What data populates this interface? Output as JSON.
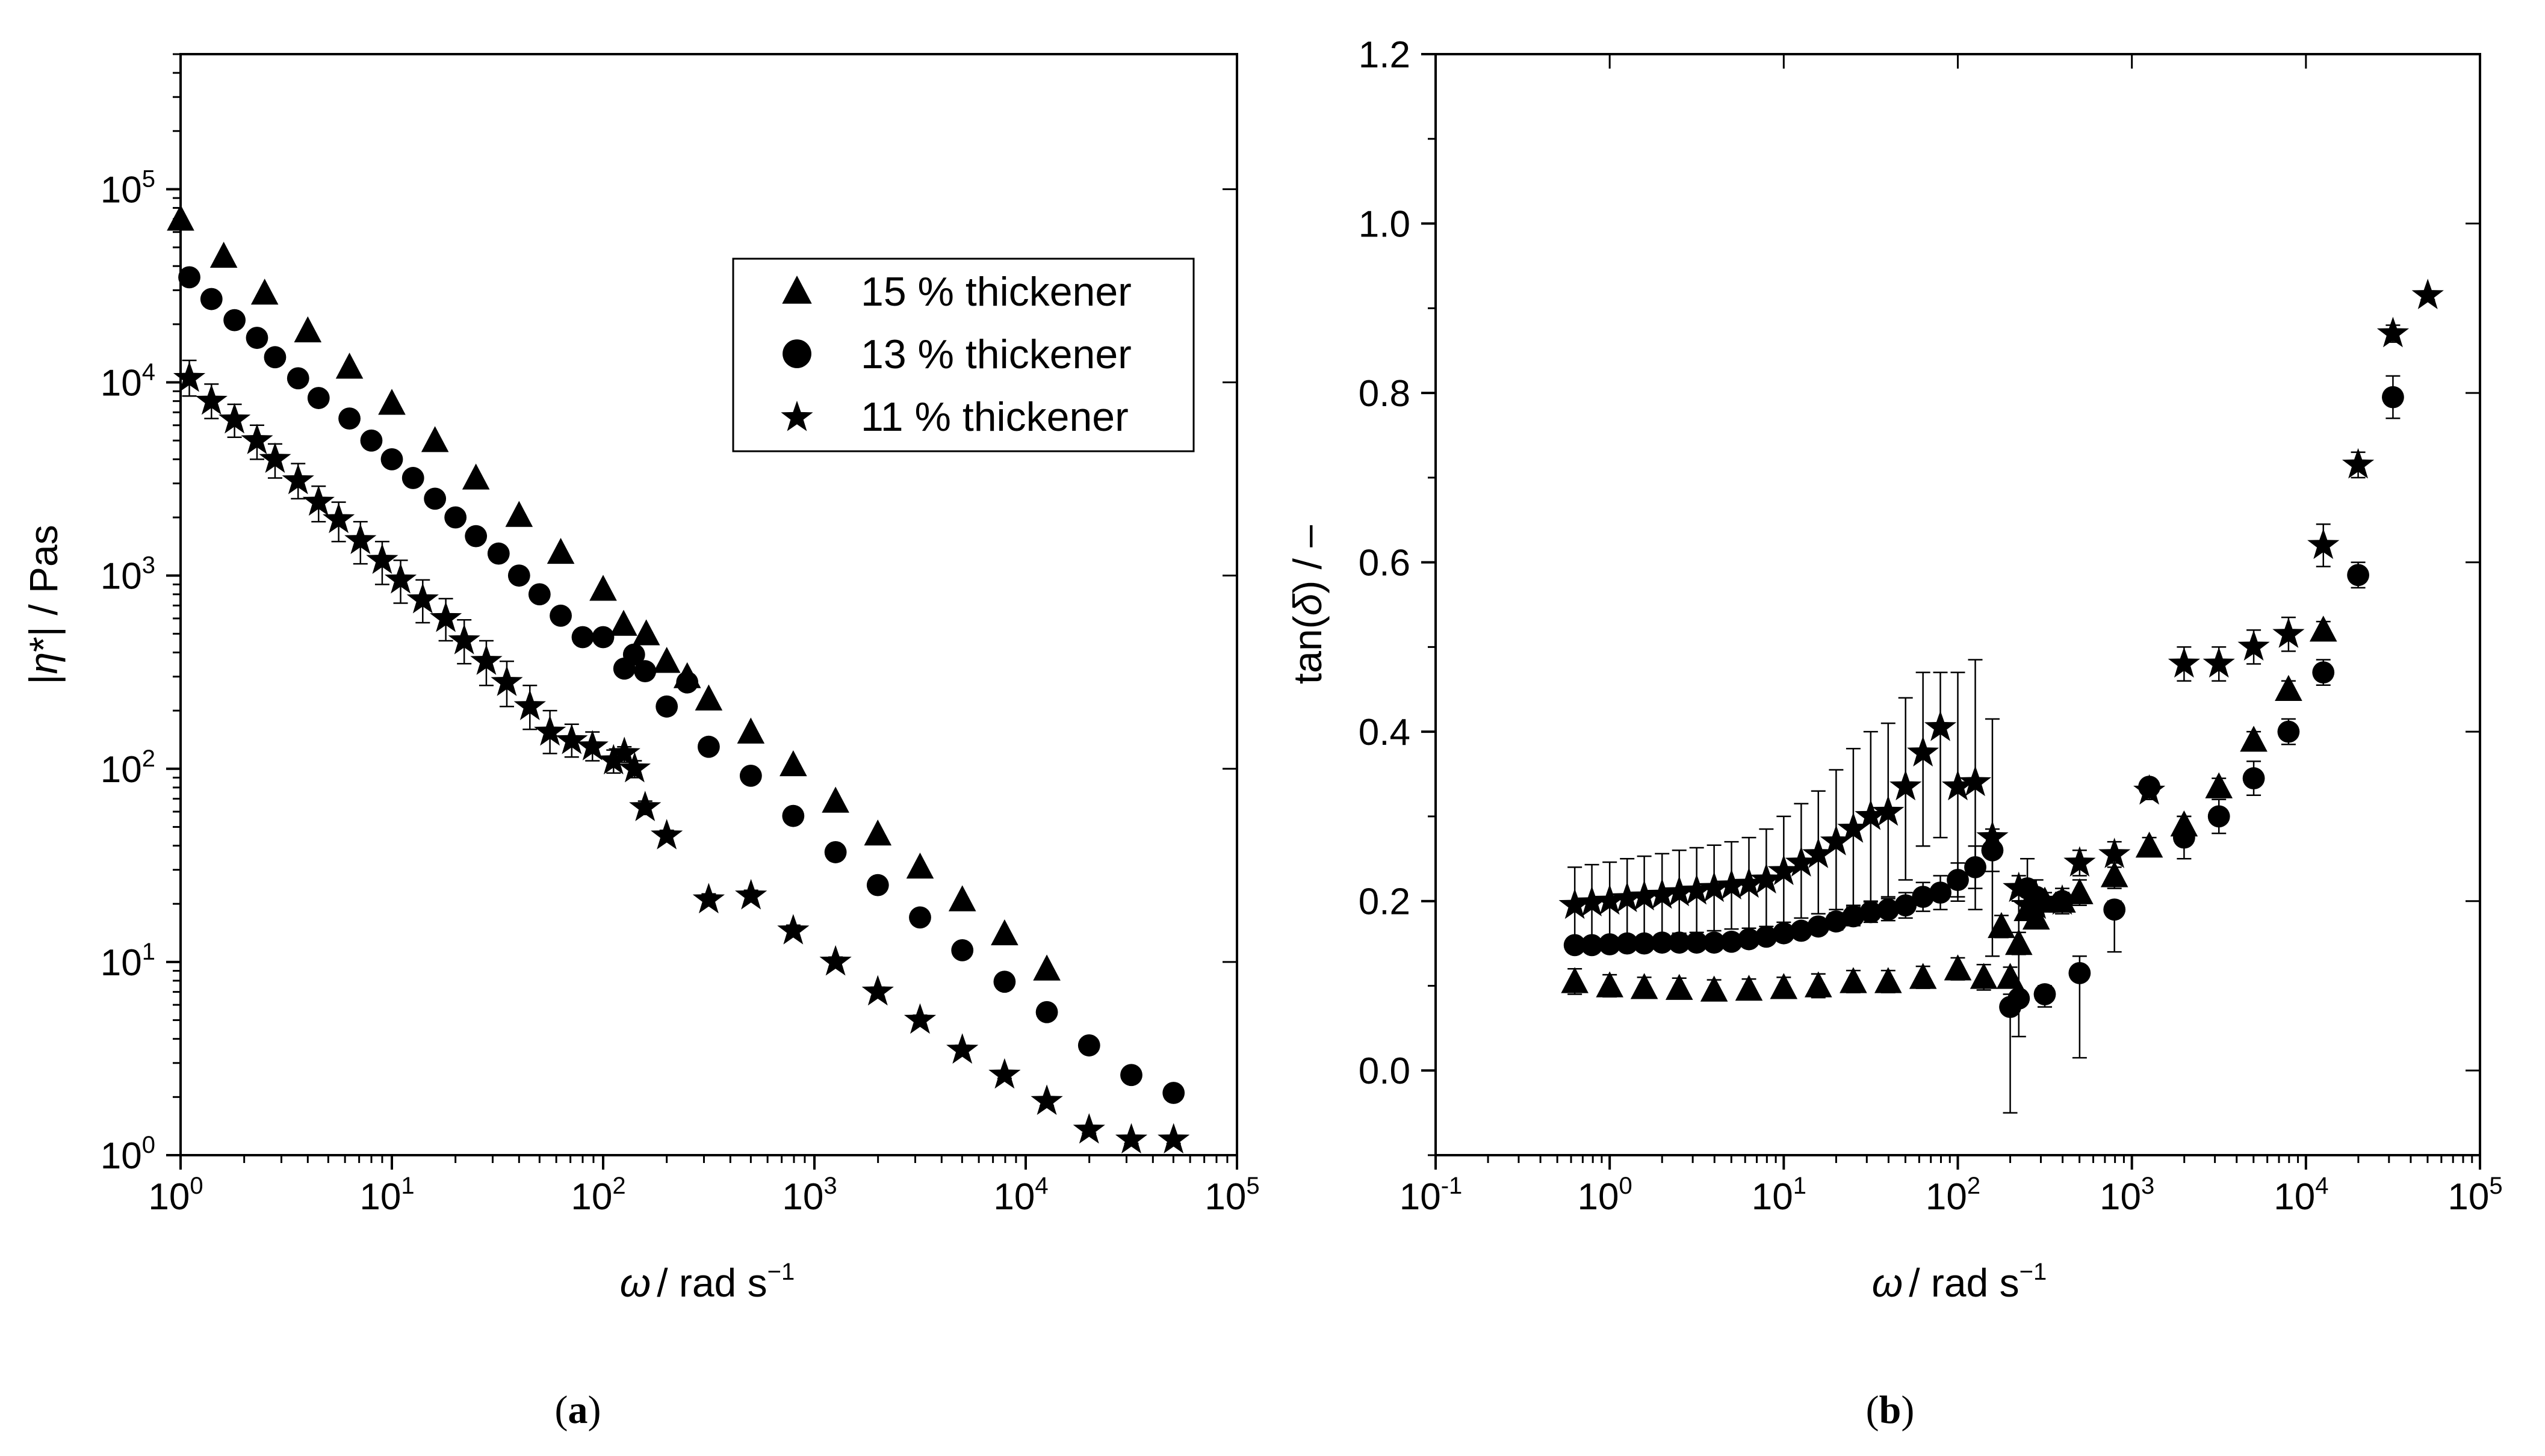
{
  "chart_data": [
    {
      "id": "a",
      "type": "scatter",
      "panel_label": {
        "open": "(",
        "letter": "a",
        "close": ")"
      },
      "xscale": "log",
      "yscale": "log",
      "xlim": [
        1,
        100000
      ],
      "ylim": [
        1,
        500000
      ],
      "xlabel": {
        "symbol": "ω",
        "text": "/ rad s",
        "sup": "−1"
      },
      "ylabel": {
        "pre": "|",
        "symbol": "η",
        "post": "*| / Pas"
      },
      "xticks": [
        {
          "base": "10",
          "exp": "0",
          "v": 1
        },
        {
          "base": "10",
          "exp": "1",
          "v": 10
        },
        {
          "base": "10",
          "exp": "2",
          "v": 100
        },
        {
          "base": "10",
          "exp": "3",
          "v": 1000
        },
        {
          "base": "10",
          "exp": "4",
          "v": 10000
        },
        {
          "base": "10",
          "exp": "5",
          "v": 100000
        }
      ],
      "yticks": [
        {
          "base": "10",
          "exp": "0",
          "v": 1
        },
        {
          "base": "10",
          "exp": "1",
          "v": 10
        },
        {
          "base": "10",
          "exp": "2",
          "v": 100
        },
        {
          "base": "10",
          "exp": "3",
          "v": 1000
        },
        {
          "base": "10",
          "exp": "4",
          "v": 10000
        },
        {
          "base": "10",
          "exp": "5",
          "v": 100000
        }
      ],
      "legend": {
        "position": "upper-right",
        "entries": [
          "15 % thickener",
          "13 % thickener",
          "11 % thickener"
        ]
      },
      "series": [
        {
          "name": "15 % thickener",
          "marker": "triangle",
          "x": [
            1,
            1.6,
            2.5,
            4,
            6.3,
            10,
            16,
            25,
            40,
            63,
            100,
            125,
            160,
            200,
            250,
            316,
            500,
            794,
            1259,
            1995,
            3162,
            5012,
            7943,
            12589
          ],
          "y": [
            70000,
            45000,
            29000,
            18500,
            12000,
            7800,
            5000,
            3200,
            2050,
            1320,
            850,
            560,
            500,
            360,
            300,
            230,
            155,
            105,
            68,
            46,
            31,
            21,
            14,
            9.2
          ]
        },
        {
          "name": "13 % thickener",
          "marker": "circle",
          "x": [
            1.1,
            1.4,
            1.8,
            2.3,
            2.8,
            3.6,
            4.5,
            6.3,
            8,
            10,
            12.6,
            16,
            20,
            25,
            32,
            40,
            50,
            63,
            80,
            100,
            126,
            140,
            158,
            200,
            250,
            316,
            500,
            794,
            1259,
            1995,
            3162,
            5012,
            7943,
            12589,
            19953,
            31623,
            50119
          ],
          "y": [
            35000,
            27000,
            21000,
            17000,
            13500,
            10500,
            8300,
            6500,
            5000,
            4000,
            3200,
            2500,
            2000,
            1600,
            1300,
            1000,
            800,
            620,
            480,
            480,
            330,
            390,
            320,
            210,
            280,
            130,
            92,
            57,
            37,
            25,
            17,
            11.5,
            7.9,
            5.5,
            3.7,
            2.6,
            2.1
          ]
        },
        {
          "name": "11 % thickener",
          "marker": "star",
          "x": [
            1.1,
            1.4,
            1.8,
            2.3,
            2.8,
            3.6,
            4.5,
            5.6,
            7.1,
            9,
            11,
            14,
            18,
            22,
            28,
            35,
            45,
            56,
            71,
            89,
            112,
            126,
            141,
            158,
            200,
            316,
            501,
            794,
            1259,
            1995,
            3162,
            5012,
            7943,
            12589,
            19953,
            31623,
            50119
          ],
          "y": [
            10500,
            8000,
            6400,
            5000,
            4000,
            3100,
            2400,
            1950,
            1520,
            1200,
            950,
            750,
            600,
            460,
            360,
            280,
            210,
            155,
            140,
            130,
            110,
            120,
            100,
            63,
            45,
            21,
            22,
            14.5,
            10,
            7,
            5,
            3.5,
            2.6,
            1.9,
            1.35,
            1.2,
            1.2
          ],
          "err_upper": [
            13000,
            9800,
            7700,
            6000,
            4800,
            3800,
            2900,
            2400,
            1900,
            1500,
            1200,
            950,
            760,
            590,
            460,
            360,
            270,
            200,
            170,
            155,
            125,
            130,
            110,
            68,
            48,
            22.5,
            23.5,
            15.5,
            10.6,
            7.4,
            5.3,
            3.7,
            2.7,
            2,
            1.4,
            1.25,
            1.25
          ],
          "err_lower": [
            8500,
            6500,
            5200,
            4000,
            3200,
            2500,
            1900,
            1500,
            1150,
            900,
            720,
            570,
            460,
            350,
            270,
            210,
            160,
            120,
            115,
            110,
            95,
            108,
            90,
            58,
            42,
            19.5,
            20.5,
            13.5,
            9.4,
            6.6,
            4.7,
            3.3,
            2.5,
            1.8,
            1.3,
            1.15,
            1.15
          ]
        }
      ]
    },
    {
      "id": "b",
      "type": "scatter",
      "panel_label": {
        "open": "(",
        "letter": "b",
        "close": ")"
      },
      "xscale": "log",
      "yscale": "linear",
      "xlim": [
        0.1,
        100000
      ],
      "ylim": [
        -0.1,
        1.2
      ],
      "xlabel": {
        "symbol": "ω",
        "text": "/ rad s",
        "sup": "−1"
      },
      "ylabel": {
        "pre": "tan(",
        "symbol": "δ",
        "post": ") / –"
      },
      "xticks": [
        {
          "base": "10",
          "exp": "-1",
          "v": 0.1
        },
        {
          "base": "10",
          "exp": "0",
          "v": 1
        },
        {
          "base": "10",
          "exp": "1",
          "v": 10
        },
        {
          "base": "10",
          "exp": "2",
          "v": 100
        },
        {
          "base": "10",
          "exp": "3",
          "v": 1000
        },
        {
          "base": "10",
          "exp": "4",
          "v": 10000
        },
        {
          "base": "10",
          "exp": "5",
          "v": 100000
        }
      ],
      "yticks": [
        "0.0",
        "0.2",
        "0.4",
        "0.6",
        "0.8",
        "1.0",
        "1.2"
      ],
      "yminor": [
        -0.1,
        0.1,
        0.3,
        0.5,
        0.7,
        0.9,
        1.1
      ],
      "series": [
        {
          "name": "15 % thickener",
          "marker": "triangle",
          "x": [
            0.63,
            1,
            1.58,
            2.51,
            3.98,
            6.31,
            10,
            15.8,
            25.1,
            39.8,
            63.1,
            100,
            141,
            178,
            200,
            224,
            251,
            282,
            316,
            398,
            501,
            794,
            1259,
            1995,
            3162,
            5012,
            7943,
            12589
          ],
          "y": [
            0.105,
            0.1,
            0.098,
            0.097,
            0.095,
            0.096,
            0.098,
            0.1,
            0.105,
            0.105,
            0.11,
            0.12,
            0.11,
            0.17,
            0.11,
            0.15,
            0.19,
            0.18,
            0.2,
            0.2,
            0.21,
            0.23,
            0.265,
            0.29,
            0.335,
            0.39,
            0.45,
            0.52
          ],
          "err_upper": [
            0.12,
            0.113,
            0.11,
            0.109,
            0.107,
            0.108,
            0.11,
            0.114,
            0.118,
            0.118,
            0.123,
            0.133,
            0.125,
            0.183,
            0.122,
            0.163,
            0.2,
            0.19,
            0.21,
            0.21,
            0.225,
            0.245,
            0.275,
            0.3,
            0.345,
            0.4,
            0.46,
            0.53
          ],
          "err_lower": [
            0.09,
            0.087,
            0.086,
            0.085,
            0.083,
            0.084,
            0.086,
            0.086,
            0.092,
            0.092,
            0.097,
            0.107,
            0.095,
            0.157,
            0.098,
            0.137,
            0.18,
            0.17,
            0.19,
            0.19,
            0.195,
            0.215,
            0.255,
            0.28,
            0.325,
            0.38,
            0.44,
            0.51
          ]
        },
        {
          "name": "13 % thickener",
          "marker": "circle",
          "x": [
            0.63,
            0.79,
            1,
            1.26,
            1.58,
            2,
            2.51,
            3.16,
            3.98,
            5.01,
            6.31,
            7.94,
            10,
            12.6,
            15.8,
            20,
            25.1,
            31.6,
            39.8,
            50.1,
            63.1,
            79.4,
            100,
            126,
            158,
            200,
            224,
            251,
            282,
            316,
            398,
            501,
            794,
            1259,
            1995,
            3162,
            5012,
            7943,
            12589,
            19953,
            31623
          ],
          "y": [
            0.148,
            0.148,
            0.149,
            0.15,
            0.15,
            0.151,
            0.151,
            0.151,
            0.151,
            0.152,
            0.155,
            0.158,
            0.162,
            0.165,
            0.17,
            0.176,
            0.182,
            0.187,
            0.19,
            0.195,
            0.205,
            0.21,
            0.225,
            0.24,
            0.26,
            0.075,
            0.085,
            0.215,
            0.205,
            0.09,
            0.2,
            0.115,
            0.19,
            0.335,
            0.275,
            0.3,
            0.345,
            0.4,
            0.47,
            0.585,
            0.795
          ],
          "err_upper": [
            0.155,
            0.155,
            0.156,
            0.157,
            0.157,
            0.158,
            0.158,
            0.158,
            0.158,
            0.16,
            0.163,
            0.166,
            0.17,
            0.174,
            0.179,
            0.186,
            0.193,
            0.199,
            0.203,
            0.21,
            0.222,
            0.23,
            0.245,
            0.265,
            0.285,
            0.09,
            0.21,
            0.25,
            0.225,
            0.1,
            0.21,
            0.135,
            0.2,
            0.34,
            0.3,
            0.32,
            0.365,
            0.415,
            0.485,
            0.6,
            0.82
          ],
          "err_lower": [
            0.141,
            0.141,
            0.142,
            0.143,
            0.143,
            0.144,
            0.144,
            0.144,
            0.144,
            0.144,
            0.147,
            0.15,
            0.154,
            0.156,
            0.161,
            0.166,
            0.171,
            0.175,
            0.177,
            0.18,
            0.188,
            0.19,
            0.205,
            0.215,
            0.235,
            -0.05,
            0.04,
            0.18,
            0.185,
            0.075,
            0.19,
            0.015,
            0.14,
            0.325,
            0.25,
            0.28,
            0.325,
            0.385,
            0.455,
            0.57,
            0.77
          ]
        },
        {
          "name": "11 % thickener",
          "marker": "star",
          "x": [
            0.63,
            0.79,
            1,
            1.26,
            1.58,
            2,
            2.51,
            3.16,
            3.98,
            5.01,
            6.31,
            7.94,
            10,
            12.6,
            15.8,
            20,
            25.1,
            31.6,
            39.8,
            50.1,
            63.1,
            79.4,
            100,
            126,
            158,
            224,
            251,
            282,
            398,
            501,
            794,
            1259,
            1995,
            3162,
            5012,
            7943,
            12589,
            19953,
            31623,
            50119
          ],
          "y": [
            0.195,
            0.198,
            0.2,
            0.203,
            0.205,
            0.207,
            0.21,
            0.212,
            0.215,
            0.218,
            0.22,
            0.225,
            0.235,
            0.245,
            0.255,
            0.27,
            0.285,
            0.3,
            0.305,
            0.335,
            0.375,
            0.405,
            0.335,
            0.34,
            0.275,
            0.215,
            0.195,
            0.195,
            0.2,
            0.245,
            0.255,
            0.33,
            0.48,
            0.48,
            0.5,
            0.515,
            0.62,
            0.715,
            0.87,
            0.915
          ],
          "err_upper": [
            0.24,
            0.243,
            0.246,
            0.25,
            0.253,
            0.256,
            0.26,
            0.263,
            0.266,
            0.27,
            0.275,
            0.285,
            0.3,
            0.315,
            0.33,
            0.355,
            0.38,
            0.4,
            0.41,
            0.44,
            0.47,
            0.47,
            0.47,
            0.485,
            0.415,
            0.23,
            0.21,
            0.205,
            0.215,
            0.26,
            0.27,
            0.34,
            0.5,
            0.5,
            0.52,
            0.535,
            0.645,
            0.73,
            0.88,
            0.92
          ],
          "err_lower": [
            0.15,
            0.153,
            0.155,
            0.157,
            0.158,
            0.16,
            0.162,
            0.163,
            0.165,
            0.167,
            0.168,
            0.17,
            0.175,
            0.18,
            0.185,
            0.19,
            0.195,
            0.2,
            0.205,
            0.225,
            0.265,
            0.275,
            0.2,
            0.19,
            0.135,
            0.2,
            0.18,
            0.185,
            0.185,
            0.23,
            0.24,
            0.32,
            0.46,
            0.46,
            0.48,
            0.495,
            0.595,
            0.7,
            0.86,
            0.91
          ]
        }
      ]
    }
  ]
}
